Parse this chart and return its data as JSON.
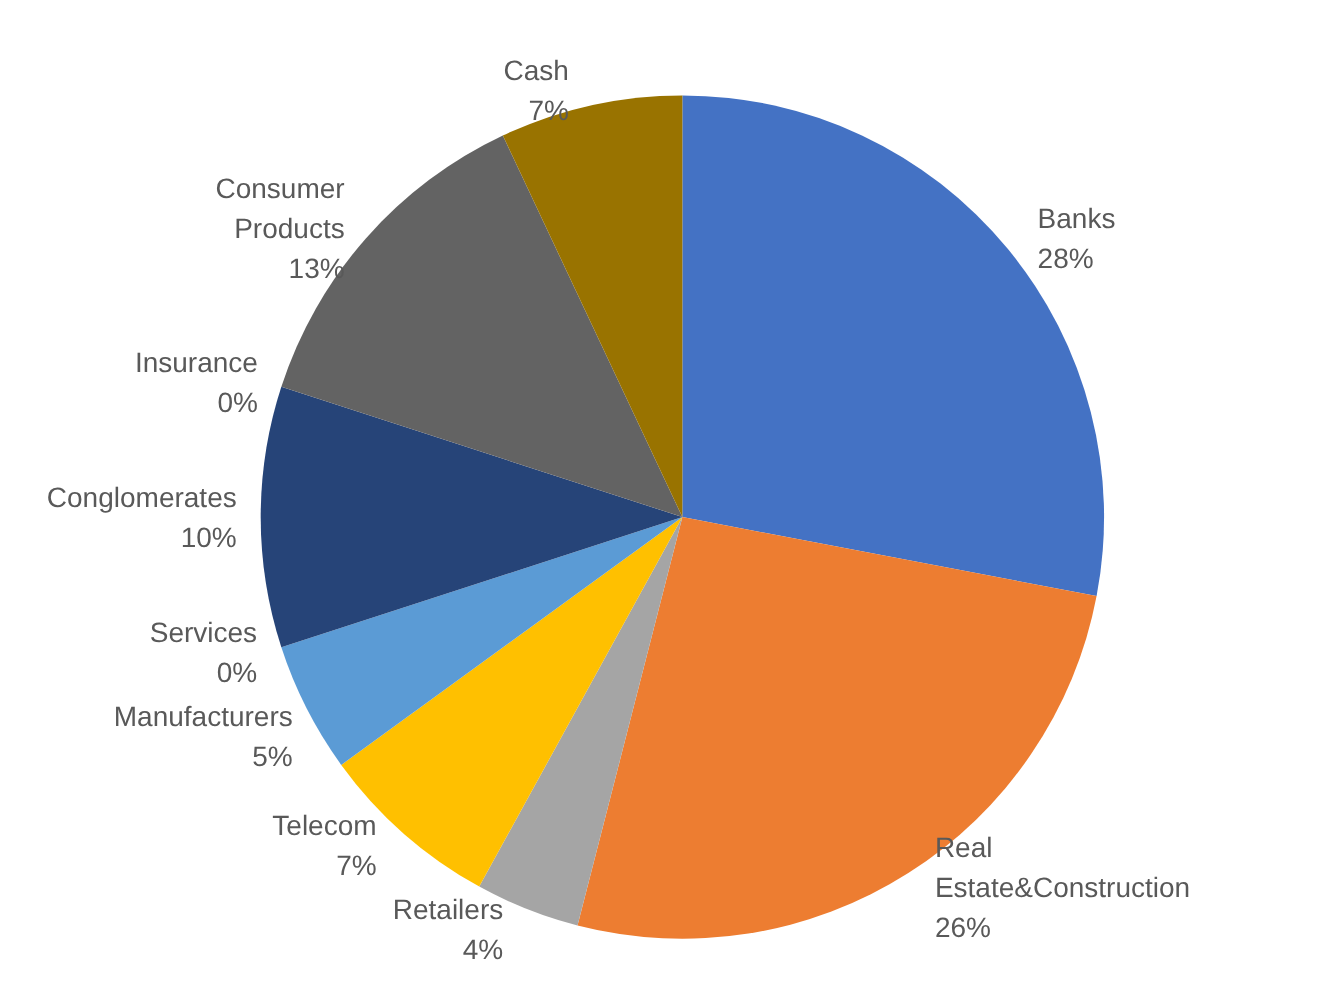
{
  "chart_data": {
    "type": "pie",
    "categories": [
      "Banks",
      "Real Estate&Construction",
      "Retailers",
      "Telecom",
      "Manufacturers",
      "Services",
      "Conglomerates",
      "Insurance",
      "Consumer Products",
      "Cash"
    ],
    "values": [
      28,
      26,
      4,
      7,
      5,
      0,
      10,
      0,
      13,
      7
    ],
    "colors": [
      "#4472c4",
      "#ed7d31",
      "#a5a5a5",
      "#ffc000",
      "#5b9bd5",
      "#70ad47",
      "#264478",
      "#9e480e",
      "#636363",
      "#997300"
    ],
    "value_labels": [
      "28%",
      "26%",
      "4%",
      "7%",
      "5%",
      "0%",
      "10%",
      "0%",
      "13%",
      "7%"
    ],
    "legend": false
  }
}
